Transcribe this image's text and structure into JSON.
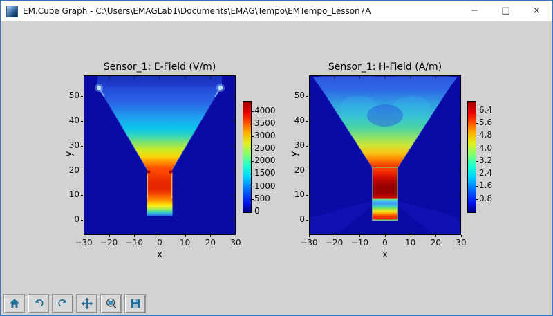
{
  "window": {
    "title": "EM.Cube Graph - C:\\Users\\EMAGLab1\\Documents\\EMAG\\Tempo\\EMTempo_Lesson7A",
    "controls": {
      "minimize": "−",
      "maximize": "□",
      "close": "×"
    }
  },
  "figure": {
    "plots": [
      {
        "title": "Sensor_1: E-Field (V/m)",
        "xlabel": "x",
        "ylabel": "y",
        "xticks": [
          -30,
          -20,
          -10,
          0,
          10,
          20,
          30
        ],
        "yticks": [
          0,
          10,
          20,
          30,
          40,
          50
        ],
        "colorbar": {
          "ticks": [
            0,
            500,
            1000,
            1500,
            2000,
            2500,
            3000,
            3500,
            4000
          ],
          "decimals": 0,
          "vmax": 4400
        }
      },
      {
        "title": "Sensor_1: H-Field (A/m)",
        "xlabel": "x",
        "ylabel": "y",
        "xticks": [
          -30,
          -20,
          -10,
          0,
          10,
          20,
          30
        ],
        "yticks": [
          0,
          10,
          20,
          30,
          40,
          50
        ],
        "colorbar": {
          "ticks": [
            0.8,
            1.6,
            2.4,
            3.2,
            4.0,
            4.8,
            5.6,
            6.4
          ],
          "decimals": 1,
          "vmax": 7.0
        }
      }
    ]
  },
  "toolbar": {
    "icons": [
      "home-icon",
      "undo-icon",
      "redo-icon",
      "pan-icon",
      "zoom-rect-icon",
      "save-icon"
    ]
  },
  "colors": {
    "accent_border": "#2f7ac9",
    "titlebar_bg": "#ffffff",
    "client_bg": "#d2d2d2",
    "heatmap_background": "#0a0aa4",
    "toolbar_icon": "#216f9c",
    "colormap": "jet"
  },
  "chart_data": [
    {
      "type": "heatmap",
      "title": "Sensor_1: E-Field (V/m)",
      "xlabel": "x",
      "ylabel": "y",
      "xlim": [
        -30,
        30
      ],
      "ylim": [
        -6,
        58
      ],
      "xticks": [
        -30,
        -20,
        -10,
        0,
        10,
        20,
        30
      ],
      "yticks": [
        0,
        10,
        20,
        30,
        40,
        50
      ],
      "colormap": "jet",
      "colorbar_ticks": [
        0,
        500,
        1000,
        1500,
        2000,
        2500,
        3000,
        3500,
        4000
      ],
      "vmin": 0,
      "vmax": 4400,
      "regions": [
        {
          "name": "background-outside-horn",
          "value": 0
        },
        {
          "name": "horn-flare-interior",
          "extent": "x ±24 at y≈53 tapering to x ±5 at y≈20",
          "value": "≈300 at aperture grading to ≈4200 at throat"
        },
        {
          "name": "waveguide",
          "extent": "x −5..5, y 0..20",
          "value": "≈4400 (red) mid-guide, dropping through yellow/green/cyan to ≈500 at y=0"
        },
        {
          "name": "aperture-corner-hotspots",
          "extent": "(−24,52) and (24,52)",
          "value": "≈1500"
        }
      ]
    },
    {
      "type": "heatmap",
      "title": "Sensor_1: H-Field (A/m)",
      "xlabel": "x",
      "ylabel": "y",
      "xlim": [
        -30,
        30
      ],
      "ylim": [
        -6,
        58
      ],
      "xticks": [
        -30,
        -20,
        -10,
        0,
        10,
        20,
        30
      ],
      "yticks": [
        0,
        10,
        20,
        30,
        40,
        50
      ],
      "colormap": "jet",
      "colorbar_ticks": [
        0.8,
        1.6,
        2.4,
        3.2,
        4.0,
        4.8,
        5.6,
        6.4
      ],
      "vmin": 0,
      "vmax": 7.0,
      "regions": [
        {
          "name": "background-outside-horn",
          "value": "≈0 with faint radiating lobes near bottom"
        },
        {
          "name": "horn-flare-interior",
          "extent": "x ±25 at y≈52 tapering to x ±5 at y≈21",
          "value": "≈1.5 light blue at top grading through cyan/green/yellow to ≈6 at throat"
        },
        {
          "name": "waveguide-upper",
          "extent": "x −5..5, y 10..21",
          "value": "≈6.5–7 dark red maximum"
        },
        {
          "name": "waveguide-null-stripe",
          "extent": "x −5..5, y 8..10",
          "value": "≈1.5 cyan/blue minimum"
        },
        {
          "name": "waveguide-lower",
          "extent": "x −5..5, y 0..8",
          "value": "banded 2→6.5: cyan, green, yellow, orange, red toward y≈1"
        }
      ]
    }
  ]
}
